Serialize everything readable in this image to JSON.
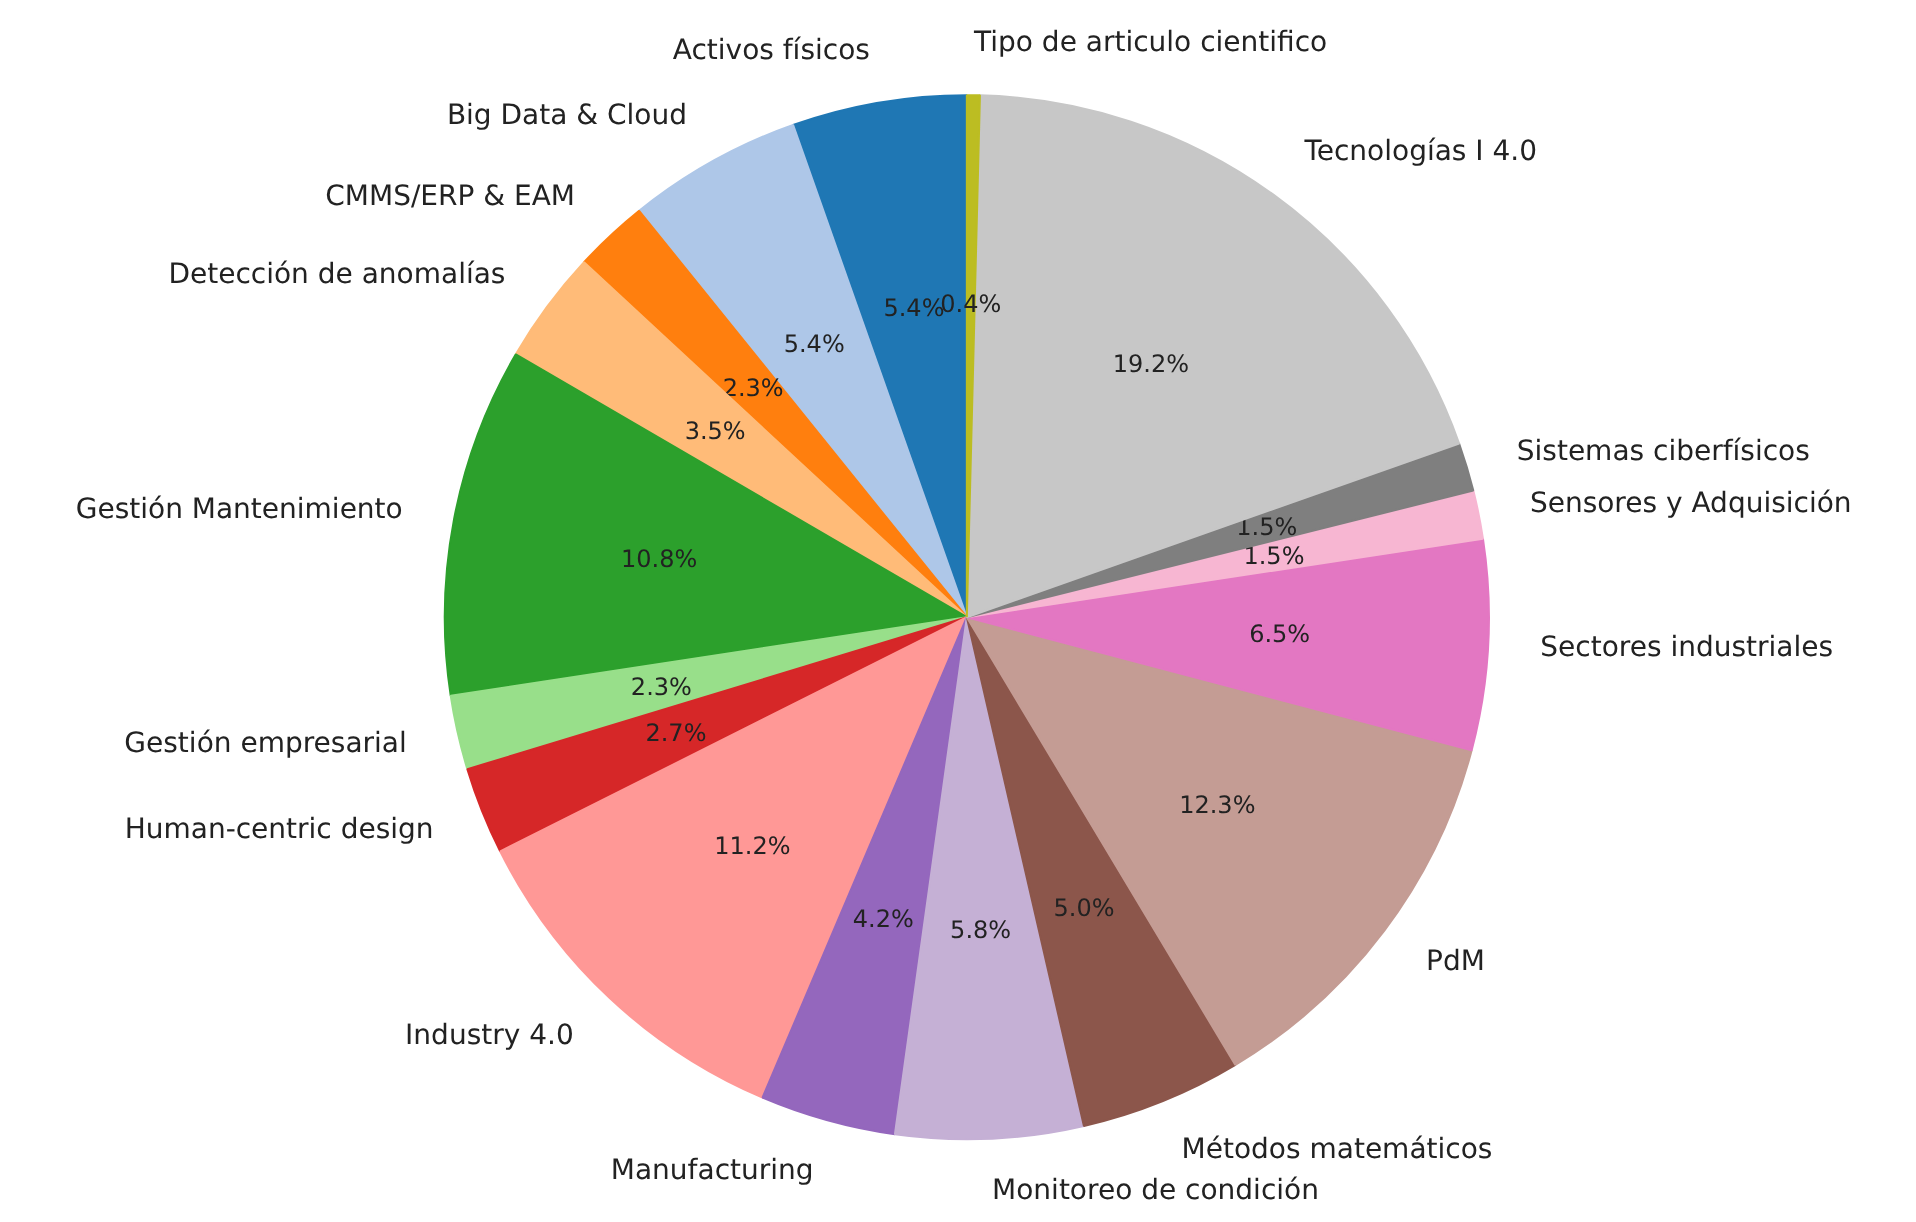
{
  "chart_data": {
    "type": "pie",
    "categories": [
      "Activos físicos",
      "Big Data & Cloud",
      "CMMS/ERP & EAM",
      "Detección de anomalías",
      "Gestión Mantenimiento",
      "Gestión empresarial",
      "Human-centric design",
      "Industry 4.0",
      "Manufacturing",
      "Monitoreo de condición",
      "Métodos matemáticos",
      "PdM",
      "Sectores industriales",
      "Sensores y Adquisición",
      "Sistemas ciberfísicos",
      "Tecnologías I 4.0",
      "Tipo de articulo cientifico"
    ],
    "values": [
      5.4,
      5.4,
      2.3,
      3.5,
      10.8,
      2.3,
      2.7,
      11.2,
      4.2,
      5.8,
      5.0,
      12.3,
      6.5,
      1.5,
      1.5,
      19.2,
      0.4
    ],
    "value_labels": [
      "5.4%",
      "5.4%",
      "2.3%",
      "3.5%",
      "10.8%",
      "2.3%",
      "2.7%",
      "11.2%",
      "4.2%",
      "5.8%",
      "5.0%",
      "12.3%",
      "6.5%",
      "1.5%",
      "1.5%",
      "19.2%",
      "0.4%"
    ],
    "colors": [
      "#1f77b4",
      "#aec7e8",
      "#ff7f0e",
      "#ffbb78",
      "#2ca02c",
      "#98df8a",
      "#d62728",
      "#ff9896",
      "#9467bd",
      "#c5b0d5",
      "#8c564b",
      "#c49c94",
      "#e377c2",
      "#f7b6d2",
      "#7f7f7f",
      "#c7c7c7",
      "#bcbd22"
    ]
  }
}
